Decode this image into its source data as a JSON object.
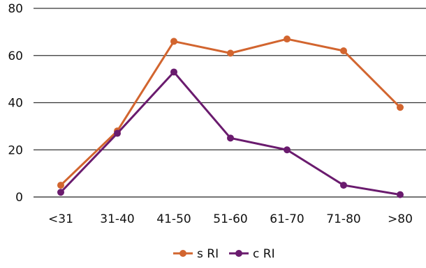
{
  "chart_data": {
    "type": "line",
    "categories": [
      "<31",
      "31-40",
      "41-50",
      "51-60",
      "61-70",
      "71-80",
      ">80"
    ],
    "series": [
      {
        "name": "s RI",
        "color": "#D2652F",
        "values": [
          5,
          28,
          66,
          61,
          67,
          62,
          38
        ]
      },
      {
        "name": "c RI",
        "color": "#6A1B6E",
        "values": [
          2,
          27,
          53,
          25,
          20,
          5,
          1
        ]
      }
    ],
    "y_ticks": [
      "0",
      "20",
      "40",
      "60",
      "80"
    ],
    "ylim": [
      0,
      80
    ],
    "grid": "horizontal",
    "legend_position": "bottom-center",
    "title": "",
    "xlabel": "",
    "ylabel": ""
  }
}
